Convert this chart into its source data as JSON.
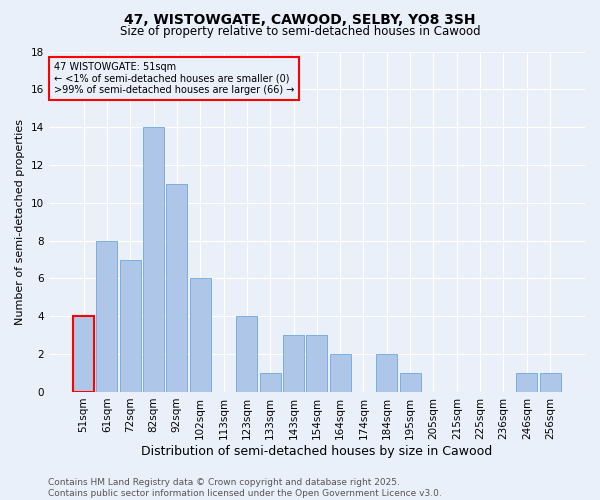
{
  "title": "47, WISTOWGATE, CAWOOD, SELBY, YO8 3SH",
  "subtitle": "Size of property relative to semi-detached houses in Cawood",
  "xlabel": "Distribution of semi-detached houses by size in Cawood",
  "ylabel": "Number of semi-detached properties",
  "categories": [
    "51sqm",
    "61sqm",
    "72sqm",
    "82sqm",
    "92sqm",
    "102sqm",
    "113sqm",
    "123sqm",
    "133sqm",
    "143sqm",
    "154sqm",
    "164sqm",
    "174sqm",
    "184sqm",
    "195sqm",
    "205sqm",
    "215sqm",
    "225sqm",
    "236sqm",
    "246sqm",
    "256sqm"
  ],
  "bar_values": [
    4,
    8,
    7,
    14,
    11,
    6,
    0,
    4,
    1,
    3,
    3,
    2,
    0,
    2,
    1,
    0,
    0,
    0,
    0,
    1,
    1
  ],
  "bar_color": "#aec6e8",
  "bar_edge_color": "#5b9bd5",
  "highlight_bar_index": 0,
  "highlight_edge_color": "red",
  "annotation_text": "47 WISTOWGATE: 51sqm\n← <1% of semi-detached houses are smaller (0)\n>99% of semi-detached houses are larger (66) →",
  "annotation_box_edge_color": "red",
  "ylim": [
    0,
    18
  ],
  "yticks": [
    0,
    2,
    4,
    6,
    8,
    10,
    12,
    14,
    16,
    18
  ],
  "footer": "Contains HM Land Registry data © Crown copyright and database right 2025.\nContains public sector information licensed under the Open Government Licence v3.0.",
  "bg_color": "#eaf0f9",
  "grid_color": "#ffffff",
  "title_fontsize": 10,
  "subtitle_fontsize": 8.5,
  "xlabel_fontsize": 9,
  "ylabel_fontsize": 8,
  "tick_fontsize": 7.5,
  "annotation_fontsize": 7,
  "footer_fontsize": 6.5
}
